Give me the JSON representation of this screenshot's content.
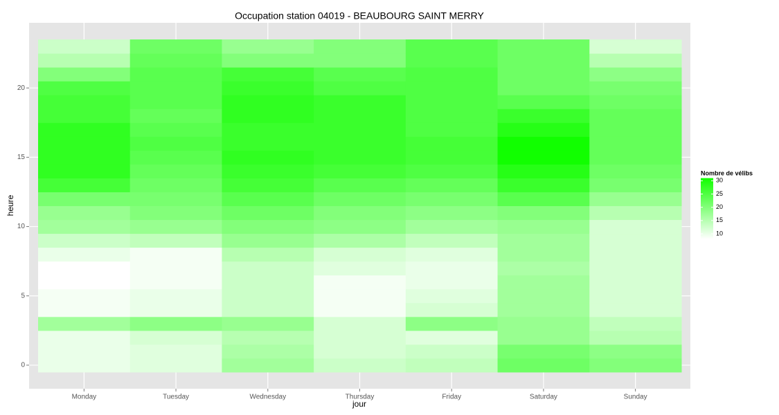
{
  "chart_data": {
    "type": "heatmap",
    "title": "Occupation station 04019 - BEAUBOURG SAINT MERRY",
    "x_label": "jour",
    "y_label": "heure",
    "categories": [
      "Monday",
      "Tuesday",
      "Wednesday",
      "Thursday",
      "Friday",
      "Saturday",
      "Sunday"
    ],
    "y": [
      0,
      1,
      2,
      3,
      4,
      5,
      6,
      7,
      8,
      9,
      10,
      11,
      12,
      13,
      14,
      15,
      16,
      17,
      18,
      19,
      20,
      21,
      22,
      23
    ],
    "values": [
      [
        10,
        10,
        10,
        17,
        9,
        9,
        8,
        8,
        10,
        13,
        17,
        18,
        21,
        26,
        28,
        28,
        28,
        28,
        26,
        26,
        25,
        20,
        15,
        13
      ],
      [
        11,
        11,
        12,
        19,
        10,
        10,
        9,
        9,
        9,
        14,
        18,
        20,
        21,
        22,
        23,
        24,
        25,
        24,
        23,
        24,
        24,
        24,
        23,
        22
      ],
      [
        17,
        16,
        15,
        18,
        13,
        13,
        13,
        13,
        15,
        18,
        20,
        22,
        24,
        26,
        27,
        28,
        27,
        27,
        28,
        28,
        27,
        26,
        20,
        18
      ],
      [
        13,
        12,
        12,
        12,
        9,
        9,
        9,
        11,
        12,
        16,
        19,
        20,
        22,
        24,
        26,
        27,
        27,
        27,
        27,
        27,
        25,
        24,
        20,
        20
      ],
      [
        14,
        13,
        11,
        19,
        12,
        11,
        10,
        10,
        11,
        14,
        17,
        19,
        21,
        23,
        25,
        26,
        26,
        25,
        25,
        25,
        25,
        25,
        24,
        24
      ],
      [
        22,
        21,
        18,
        18,
        17,
        17,
        17,
        16,
        17,
        17,
        18,
        20,
        24,
        27,
        29,
        31,
        31,
        29,
        27,
        24,
        22,
        22,
        22,
        22
      ],
      [
        20,
        19,
        15,
        14,
        12,
        12,
        12,
        12,
        12,
        12,
        12,
        15,
        18,
        21,
        22,
        23,
        23,
        23,
        23,
        22,
        21,
        19,
        15,
        12
      ]
    ],
    "ylim": [
      -1.7,
      24.7
    ],
    "yticks": [
      0,
      5,
      10,
      15,
      20
    ],
    "color_low": "#ffffff",
    "color_high": "#11ff00",
    "legend_title": "Nombre de vélibs",
    "legend_ticks": [
      10,
      15,
      20,
      25,
      30
    ]
  }
}
